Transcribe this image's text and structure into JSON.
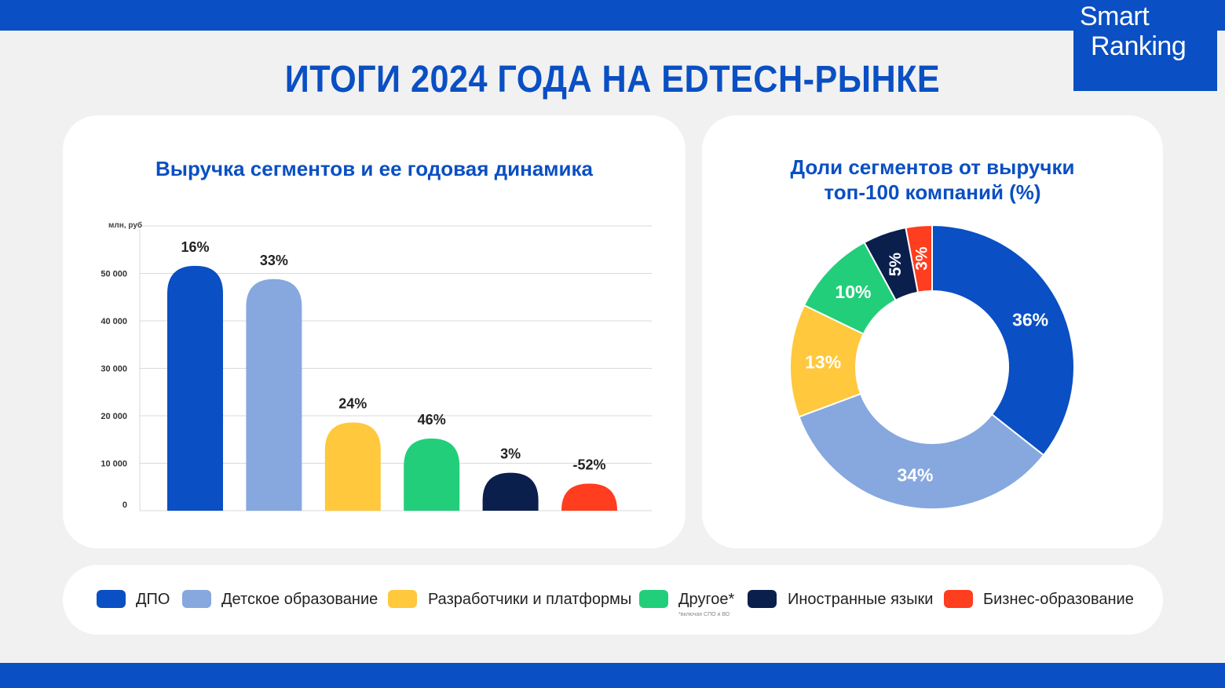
{
  "header": {
    "logo_line1": "Smart",
    "logo_line2": "Ranking",
    "title": "ИТОГИ 2024 ГОДА НА EDTECH-РЫНКЕ"
  },
  "colors": {
    "brand": "#0a4fc3",
    "dpo": "#0a4fc3",
    "kids": "#86a8de",
    "dev": "#ffc83d",
    "other": "#22ce7a",
    "lang": "#0b1f4d",
    "biz": "#ff3d1f"
  },
  "chart_data": [
    {
      "type": "bar",
      "title": "Выручка сегментов и ее годовая динамика",
      "ylabel": "млн, руб",
      "ylim": [
        0,
        60000
      ],
      "yticks": [
        "0",
        "10 000",
        "20 000",
        "30 000",
        "40 000",
        "50 000"
      ],
      "categories": [
        "ДПО",
        "Детское образование",
        "Разработчики и платформы",
        "Другое*",
        "Иностранные языки",
        "Бизнес-образование"
      ],
      "values": [
        51600,
        48800,
        18600,
        15200,
        8000,
        5700
      ],
      "labels": [
        "16%",
        "33%",
        "24%",
        "46%",
        "3%",
        "-52%"
      ]
    },
    {
      "type": "pie",
      "title_line1": "Доли сегментов от выручки",
      "title_line2": "топ-100 компаний (%)",
      "categories": [
        "ДПО",
        "Детское образование",
        "Разработчики и платформы",
        "Другое*",
        "Иностранные языки",
        "Бизнес-образование"
      ],
      "values": [
        36,
        34,
        13,
        10,
        5,
        3
      ],
      "labels": [
        "36%",
        "34%",
        "13%",
        "10%",
        "5%",
        "3%"
      ]
    }
  ],
  "legend": {
    "items": [
      {
        "label": "ДПО",
        "note": ""
      },
      {
        "label": "Детское образование",
        "note": ""
      },
      {
        "label": "Разработчики и платформы",
        "note": ""
      },
      {
        "label": "Другое*",
        "note": "*включая СПО и ВО"
      },
      {
        "label": "Иностранные языки",
        "note": ""
      },
      {
        "label": "Бизнес-образование",
        "note": ""
      }
    ]
  }
}
